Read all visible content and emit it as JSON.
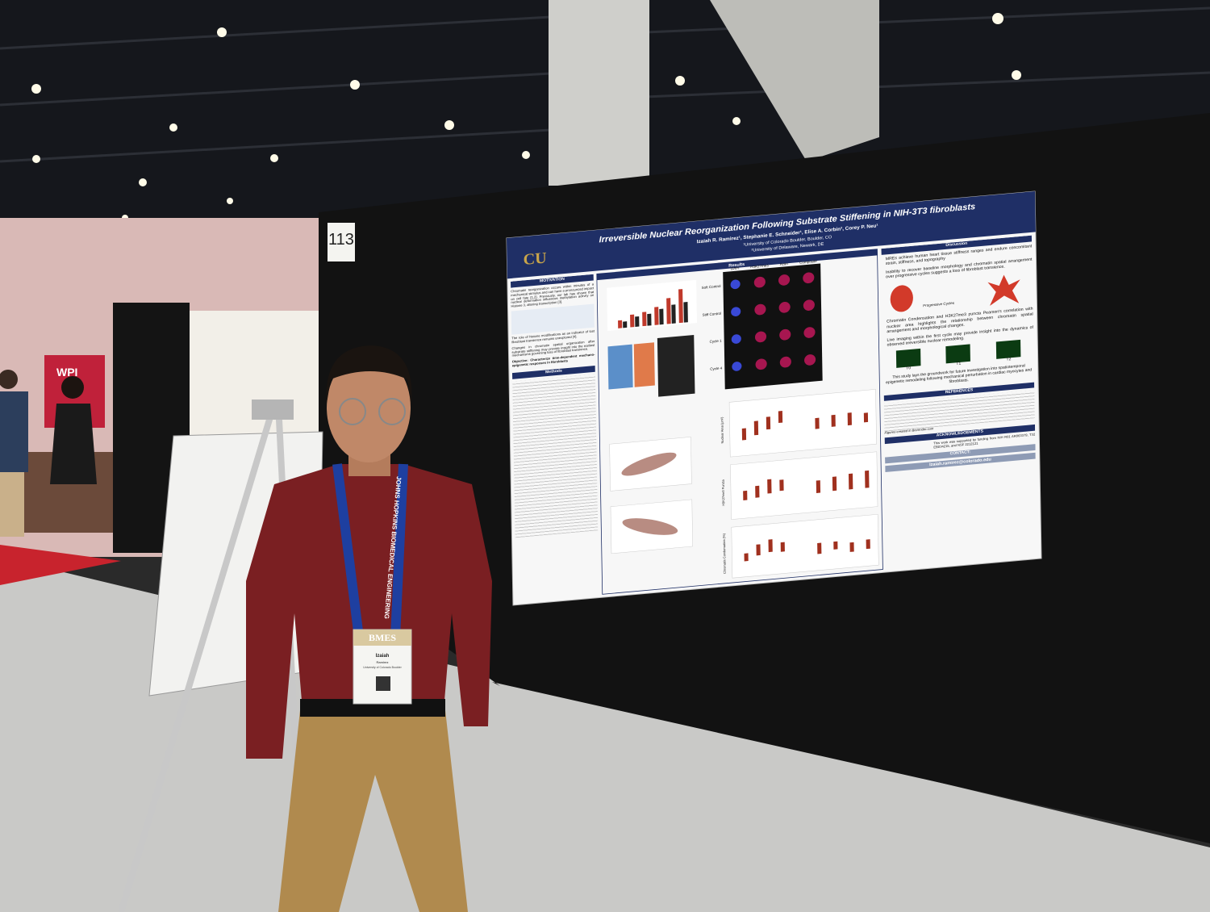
{
  "board_number": "113",
  "booth_sign": "WPI",
  "lanyard": "JOHNS HOPKINS BIOMEDICAL ENGINEERING",
  "badge": {
    "org": "BMES",
    "first_name": "Izaiah",
    "last_name": "Ramirez",
    "affiliation": "University of Colorado Boulder"
  },
  "poster": {
    "title": "Irreversible Nuclear Reorganization Following Substrate Stiffening in NIH-3T3 fibroblasts",
    "authors": "Izaiah R. Ramirez¹, Stephanie E. Schneider¹, Elise A. Corbin², Corey P. Neu¹",
    "affiliations": [
      "¹University of Colorado Boulder, Boulder, CO",
      "²University of Delaware, Newark, DE"
    ],
    "motivation": {
      "heading": "MOTIVATION",
      "paragraphs": [
        "Chromatin reorganization occurs within minutes of a mechanical stimulus and can have a pronounced impact on cell fate [1,2]. Previously, our lab has shown that nuclear deformation influences methylation activity on Histone 3, altering transcription [3].",
        "The role of histone modifications as an indicator of lost fibroblast transience remains unexplored [4].",
        "Changes in chromatin spatial organization after substrate stiffening may provide insight into the earliest mechanisms governing loss of fibroblast transience.",
        "Objective: Characterize time-dependent mechano-epigenetic responses in fibroblasts"
      ]
    },
    "methods": {
      "heading": "Methods"
    },
    "results": {
      "heading": "Results",
      "column_labels": [
        "DAPI",
        "H3K27me3",
        "Actin",
        "Composite"
      ],
      "row_labels": [
        "Soft Control",
        "Stiff Control",
        "Cycle 1",
        "Cycle 4"
      ],
      "axis_labels": [
        "Nuclear Area (μm²)",
        "H3K27me3 Puncta",
        "Chromatin Condensation (%)"
      ]
    },
    "discussion": {
      "heading": "Discussion",
      "bullets": [
        "MREs achieve human heart tissue stiffness ranges and endure concomitant strain, stiffness, and topography",
        "Inability to recover baseline morphology and chromatin spatial arrangement over progressive cycles suggests a loss of fibroblast transience.",
        "Chromatin Condensation and H3K27me3 puncta Pearson's correlation with nuclear area highlights the relationship between chromatin spatial arrangement and morphological changes.",
        "Live imaging within the first cycle may provide insight into the dynamics of observed irreversible nuclear remodeling."
      ],
      "diagram_label": "Progressive Cycles",
      "timepoints": [
        "T0",
        "T1",
        "T2"
      ],
      "closing": "This study lays the groundwork for future investigation into spatiotemporal epigenetic remodeling following mechanical perturbation in cardiac myocytes and fibroblasts."
    },
    "references": {
      "heading": "REFERENCES",
      "credit": "Figures created in Biorender.com"
    },
    "acknowledgements": {
      "heading": "ACKNOWLEDGEMENTS",
      "text": "This work was supported by funding from NIH R01 AR063379, T32 EB034215, and NSF 2212121"
    },
    "contact": {
      "heading": "CONTACT:",
      "email": "Izaiah.ramirez@colorado.edu"
    }
  }
}
